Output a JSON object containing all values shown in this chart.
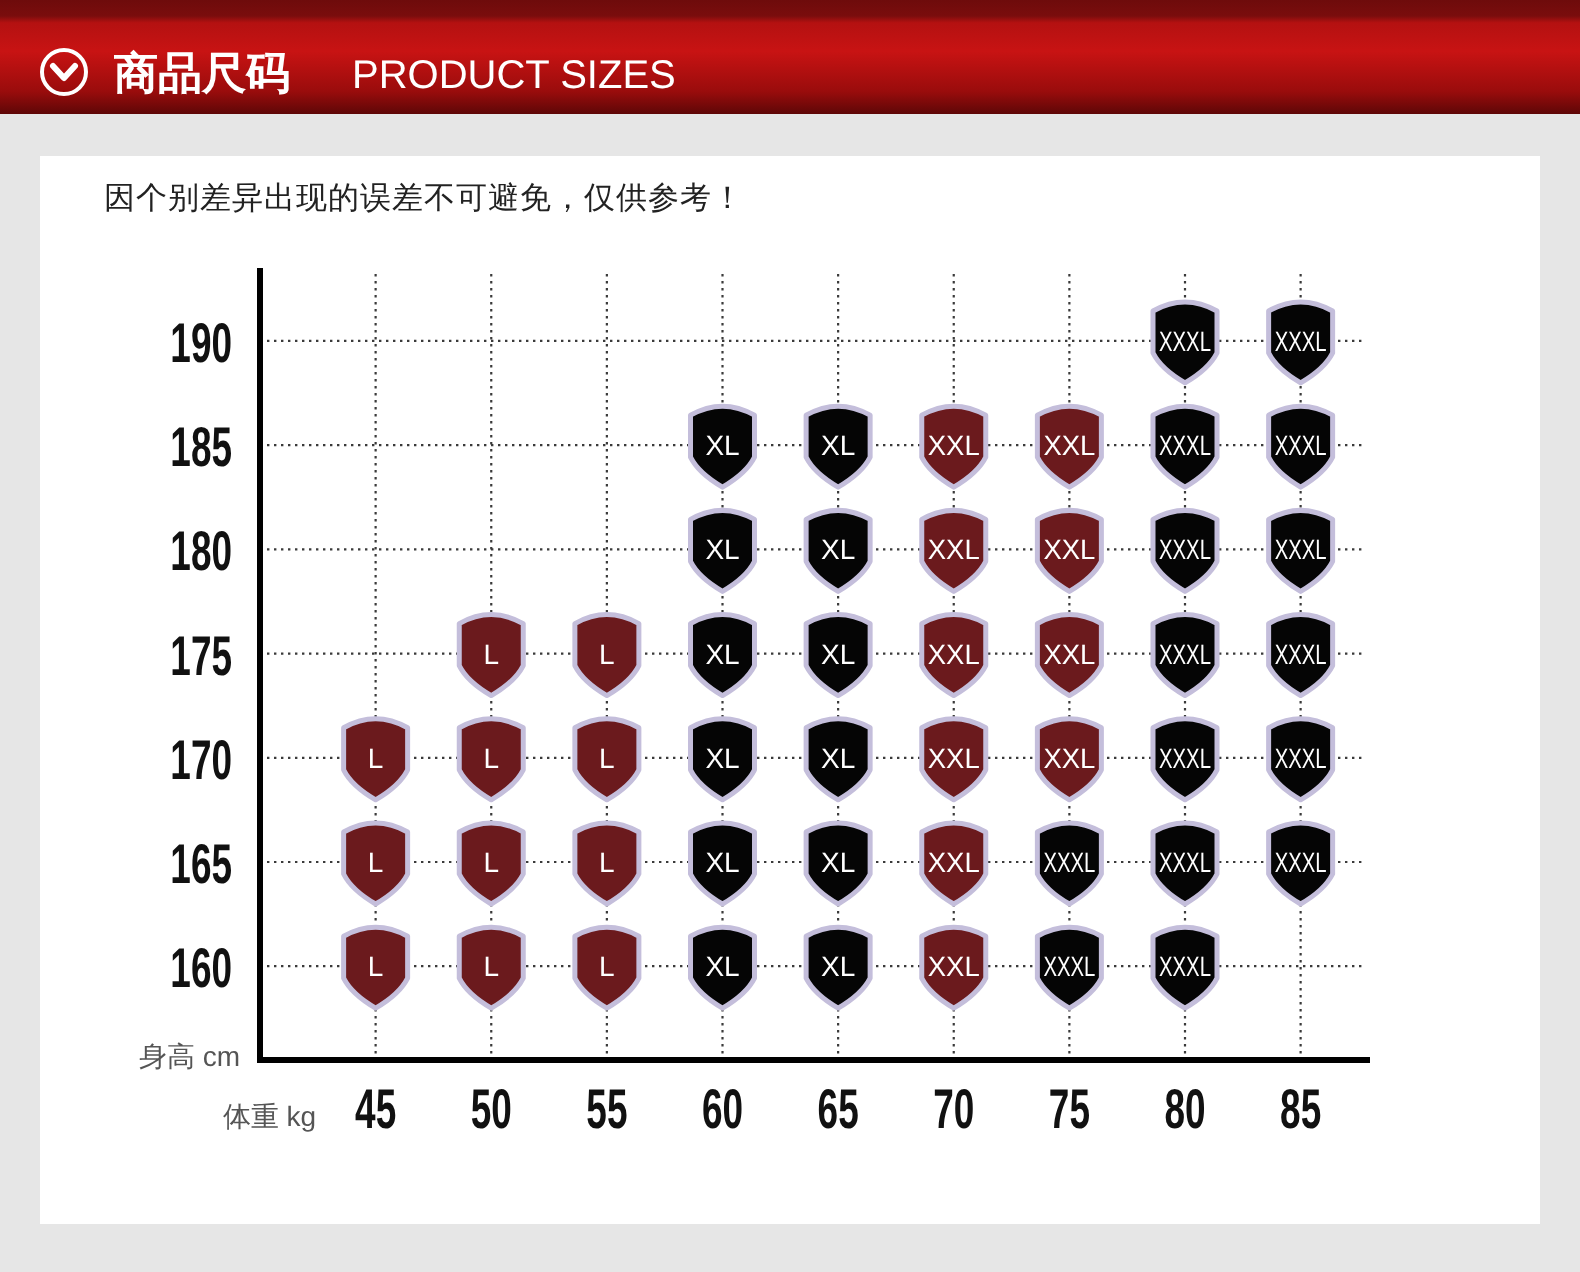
{
  "chart_data": {
    "type": "scatter",
    "title": "商品尺码",
    "subtitle": "PRODUCT SIZES",
    "annotations": [
      "因个别差异出现的误差不可避免，仅供参考！"
    ],
    "xlabel": "体重 kg",
    "ylabel": "身高 cm",
    "xlim": [
      40,
      88
    ],
    "ylim": [
      155.5,
      193.5
    ],
    "xticks": [
      45,
      50,
      55,
      60,
      65,
      70,
      75,
      80,
      85
    ],
    "yticks": [
      160,
      165,
      170,
      175,
      180,
      185,
      190
    ],
    "grid": true,
    "series": [
      {
        "name": "L",
        "color": "#6b1a1d",
        "x": [
          45,
          45,
          45,
          50,
          50,
          50,
          50,
          55,
          55,
          55,
          55
        ],
        "values": [
          160,
          165,
          170,
          160,
          165,
          170,
          175,
          160,
          165,
          170,
          175
        ]
      },
      {
        "name": "XL",
        "color": "#050505",
        "x": [
          60,
          60,
          60,
          60,
          60,
          60,
          65,
          65,
          65,
          65,
          65,
          65
        ],
        "values": [
          160,
          165,
          170,
          175,
          180,
          185,
          160,
          165,
          170,
          175,
          180,
          185
        ]
      },
      {
        "name": "XXL",
        "color": "#6b1a1d",
        "x": [
          70,
          70,
          70,
          70,
          70,
          70,
          75,
          75,
          75,
          75
        ],
        "values": [
          160,
          165,
          170,
          175,
          180,
          185,
          170,
          175,
          180,
          185
        ]
      },
      {
        "name": "XXXL",
        "color": "#050505",
        "x": [
          75,
          75,
          80,
          80,
          80,
          80,
          80,
          80,
          80,
          85,
          85,
          85,
          85,
          85,
          85
        ],
        "values": [
          160,
          165,
          160,
          165,
          170,
          175,
          180,
          185,
          190,
          165,
          170,
          175,
          180,
          185,
          190
        ]
      }
    ]
  }
}
